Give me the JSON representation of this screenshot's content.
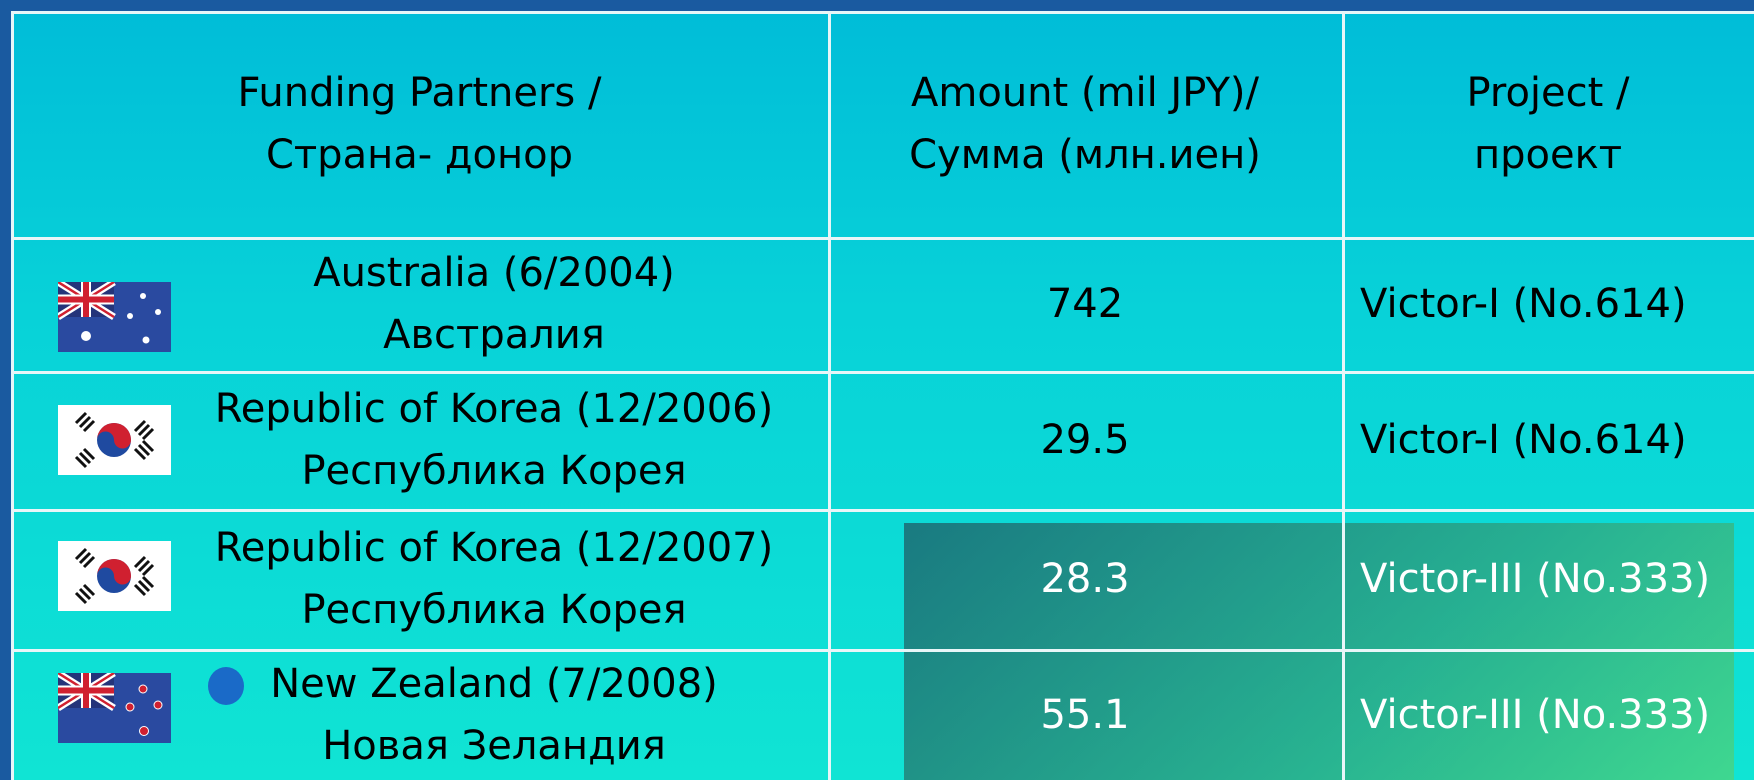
{
  "table": {
    "header": [
      [
        "Funding Partners /",
        "Страна- донор"
      ],
      [
        "Amount (mil JPY)/",
        "Сумма (млн.иен)"
      ],
      [
        "Project /",
        "проект"
      ]
    ],
    "rows": [
      [
        [
          "Australia (6/2004)",
          "Австралия"
        ],
        "742",
        "Victor-I (No.614)"
      ],
      [
        [
          "Republic of Korea  (12/2006)",
          "Республика Корея"
        ],
        "29.5",
        "Victor-I (No.614)"
      ],
      [
        [
          "Republic of Korea (12/2007)",
          "Республика Корея"
        ],
        "28.3",
        "Victor-III (No.333)"
      ],
      [
        [
          "New Zealand   (7/2008)",
          "Новая Зеландия"
        ],
        "55.1",
        "Victor-III (No.333)"
      ]
    ]
  }
}
